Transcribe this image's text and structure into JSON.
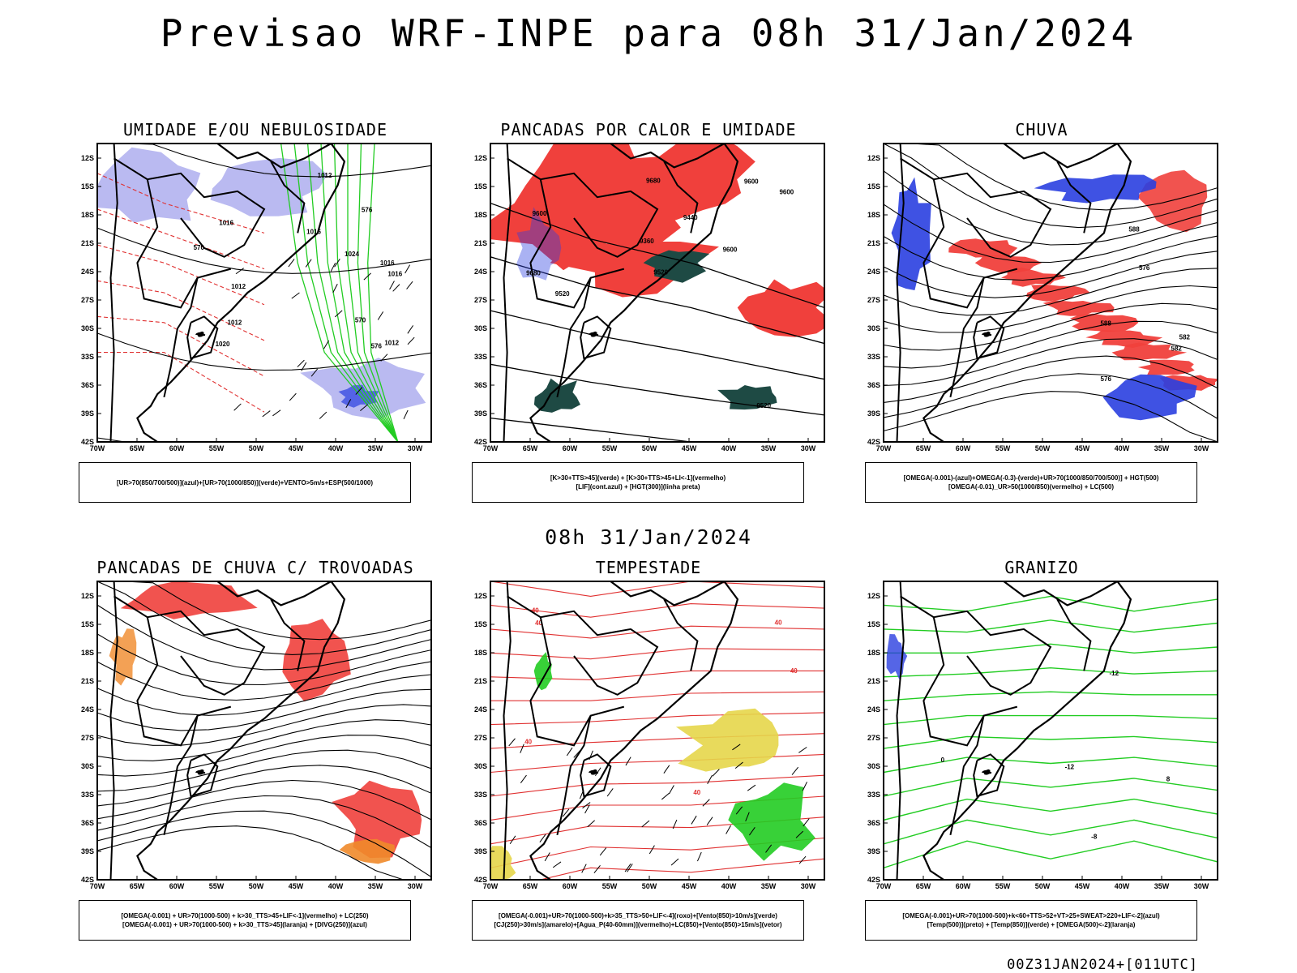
{
  "header": {
    "title": "Previsao WRF-INPE  para 08h 31/Jan/2024"
  },
  "mid_title": "08h 31/Jan/2024",
  "footer": "00Z31JAN2024+[011UTC]",
  "axes": {
    "lat_ticks": [
      "12S",
      "15S",
      "18S",
      "21S",
      "24S",
      "27S",
      "30S",
      "33S",
      "36S",
      "39S",
      "42S"
    ],
    "lon_ticks": [
      "70W",
      "65W",
      "60W",
      "55W",
      "50W",
      "45W",
      "40W",
      "35W",
      "30W"
    ]
  },
  "colors": {
    "red": "#f0403c",
    "blue": "#2a3fe0",
    "lavender": "#a9a9ee",
    "green": "#22cc22",
    "dark_teal": "#1e4a44",
    "yellow": "#e6d64a",
    "orange": "#f08a2a",
    "red_line": "#e03030"
  },
  "panels": [
    {
      "title": "UMIDADE E/OU NEBULOSIDADE",
      "legend": [
        "[UR>70(850/700/500)](azul)+[UR>70(1000/850)](verde)+VENTO>5m/s+ESP(500/1000)"
      ],
      "labels": [
        "1016",
        "1016",
        "1016",
        "1016",
        "1012",
        "1012",
        "1012",
        "1012",
        "576",
        "576",
        "570",
        "570",
        "1024",
        "1020"
      ]
    },
    {
      "title": "PANCADAS POR CALOR E UMIDADE",
      "legend": [
        "[K>30+TTS>45](verde) + [K>30+TTS>45+LI<-1](vermelho)",
        "[LIF](cont.azul) + [HGT(300)](linha preta)"
      ],
      "labels": [
        "9680",
        "9680",
        "9600",
        "9600",
        "9600",
        "9520",
        "9520",
        "9440",
        "9360",
        "9600",
        "9520"
      ]
    },
    {
      "title": "CHUVA",
      "legend": [
        "[OMEGA(-0.001)-(azul)+OMEGA(-0.3)-(verde)+UR>70(1000/850/700/500)] + HGT(500)",
        "[OMEGA(-0.01)_UR>50(1000/850)(vermelho) + LC(500)"
      ],
      "labels": [
        "588",
        "582",
        "576",
        "582",
        "576",
        "588"
      ]
    },
    {
      "title": "PANCADAS DE CHUVA C/ TROVOADAS",
      "legend": [
        "[OMEGA(-0.001) + UR>70(1000-500) + k>30_TTS>45+LIF<-1](vermelho) + LC(250)",
        "[OMEGA(-0.001) + UR>70(1000-500) + k>30_TTS>45](laranja) + [DIVG(250)](azul)"
      ],
      "labels": []
    },
    {
      "title": "TEMPESTADE",
      "legend": [
        "[OMEGA(-0.001)+UR>70(1000-500)+k>35_TTS>50+LIF<-4](roxo)+[Vento(850)>10m/s](verde)",
        "[CJ(250)>30m/s](amarelo)+[Agua_P(40-60mm)](vermelho)+LC(850)+[Vento(850)>15m/s](vetor)"
      ],
      "labels": [
        "40",
        "40",
        "40",
        "40",
        "40",
        "40"
      ]
    },
    {
      "title": "GRANIZO",
      "legend": [
        "[OMEGA(-0.001)+UR>70(1000-500)+k<60+TTS>52+VT>25+SWEAT>220+LIF<-2](azul)",
        "[Temp(500)](preto) + [Temp(850)](verde) + [OMEGA(500)<-2](laranja)"
      ],
      "labels": [
        "-12",
        "-12",
        "0",
        "8",
        "-8"
      ]
    }
  ]
}
